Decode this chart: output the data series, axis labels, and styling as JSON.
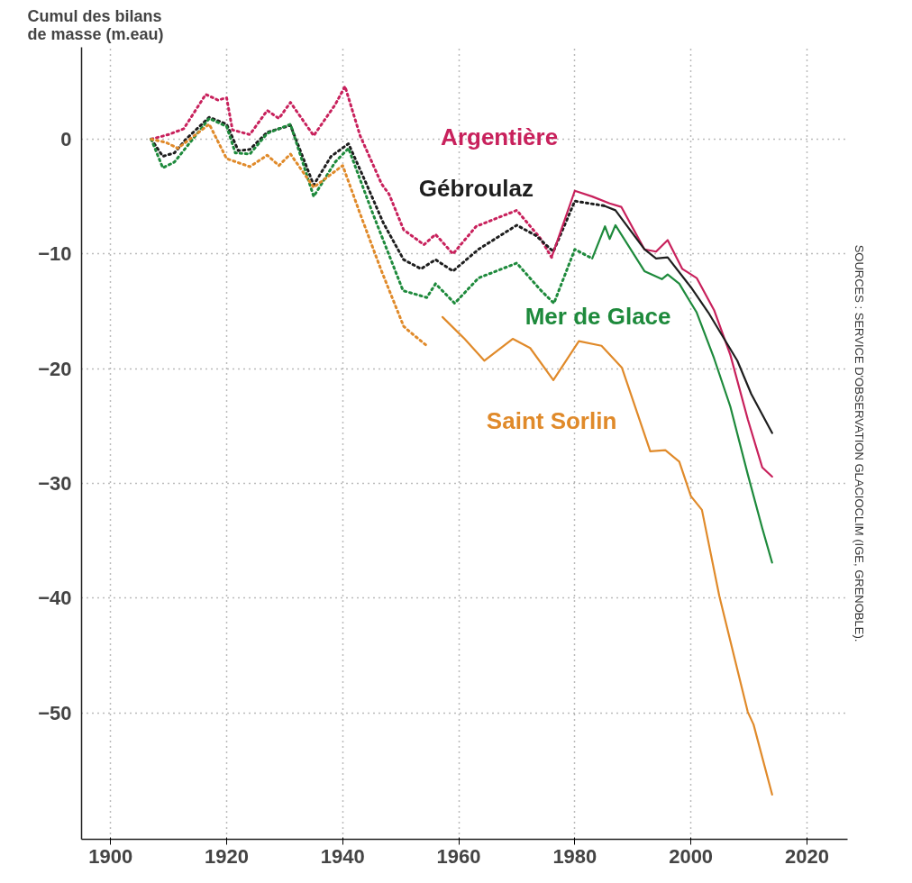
{
  "chart_data": {
    "type": "line",
    "ylabel": "Cumul des bilans\nde masse (m.eau)",
    "annotations": [
      "SOURCES : SERVICE D'OBSERVATION GLACIOCLIM (IGE, GRENOBLE)."
    ],
    "xlim": [
      1895,
      2027
    ],
    "ylim": [
      -61,
      8
    ],
    "xticks": [
      1900,
      1920,
      1940,
      1960,
      1980,
      2000,
      2020
    ],
    "yticks": [
      0,
      -10,
      -20,
      -30,
      -40,
      -50
    ],
    "grid": true,
    "marker": "none",
    "series": [
      {
        "name": "Argentière",
        "color": "#c8215c",
        "line_style": "dotted",
        "x": [
          1907,
          1910,
          1912.6,
          1916.4,
          1918.5,
          1920,
          1921,
          1924,
          1927,
          1929,
          1931,
          1935,
          1938.7,
          1940.4,
          1943,
          1946.7,
          1948,
          1950.5,
          1954,
          1956,
          1959,
          1963,
          1970,
          1974,
          1976
        ],
        "values": [
          0,
          0.4,
          0.9,
          3.9,
          3.4,
          3.6,
          0.8,
          0.4,
          2.5,
          1.8,
          3.2,
          0.3,
          3.0,
          4.6,
          0.3,
          -3.9,
          -4.8,
          -7.9,
          -9.2,
          -8.3,
          -10,
          -7.6,
          -6.2,
          -8.6,
          -10.3
        ]
      },
      {
        "name": "Gébroulaz",
        "color": "#1e1e1e",
        "line_style": "dotted",
        "x": [
          1907,
          1909,
          1911,
          1913,
          1917,
          1920,
          1922,
          1924,
          1927,
          1931,
          1935,
          1938,
          1941,
          1944,
          1947,
          1950.5,
          1953.5,
          1956,
          1959,
          1963.4,
          1970,
          1973.3,
          1976.3,
          1980,
          1985
        ],
        "values": [
          0,
          -1.5,
          -1.2,
          0,
          1.9,
          1.3,
          -1.0,
          -0.9,
          0.6,
          1.2,
          -4.0,
          -1.5,
          -0.4,
          -3.8,
          -7.3,
          -10.5,
          -11.3,
          -10.5,
          -11.5,
          -9.6,
          -7.5,
          -8.4,
          -9.8,
          -5.4,
          -5.8
        ]
      },
      {
        "name": "Mer de Glace",
        "color": "#1e8a3c",
        "line_style": "dotted",
        "x": [
          1907,
          1909,
          1911,
          1917,
          1920,
          1921.5,
          1924,
          1927,
          1931,
          1935,
          1938.7,
          1941,
          1945.2,
          1950.4,
          1954.5,
          1956,
          1959.3,
          1963.4,
          1970,
          1974.2,
          1976.4,
          1980,
          1983
        ],
        "values": [
          0,
          -2.5,
          -2.0,
          1.8,
          1.1,
          -1.2,
          -1.3,
          0.5,
          1.3,
          -5.0,
          -2.0,
          -0.8,
          -6.5,
          -13.2,
          -13.8,
          -12.6,
          -14.3,
          -12.1,
          -10.8,
          -13.2,
          -14.3,
          -9.6,
          -10.4
        ]
      },
      {
        "name": "Saint Sorlin",
        "color": "#e08a2a",
        "line_style": "dotted",
        "x": [
          1907,
          1909.6,
          1911.6,
          1917,
          1920,
          1924,
          1927,
          1929,
          1931,
          1935,
          1940,
          1943,
          1946.7,
          1950.5,
          1951.6,
          1954.5
        ],
        "values": [
          0,
          -0.3,
          -0.8,
          1.3,
          -1.7,
          -2.4,
          -1.4,
          -2.3,
          -1.3,
          -4.2,
          -2.3,
          -6.5,
          -11.5,
          -16.3,
          -16.8,
          -18.0
        ]
      },
      {
        "color": "#c8215c",
        "line_style": "solid",
        "x": [
          1976,
          1980,
          1983,
          1986,
          1988,
          1992,
          1994,
          1996,
          1998.5,
          2001,
          2004,
          2006.8,
          2009.8,
          2012.3,
          2014
        ],
        "values": [
          -10.3,
          -4.5,
          -5.0,
          -5.6,
          -5.9,
          -9.6,
          -9.8,
          -8.8,
          -11.3,
          -12.1,
          -14.9,
          -18.8,
          -24.4,
          -28.6,
          -29.4
        ]
      },
      {
        "color": "#1e1e1e",
        "line_style": "solid",
        "x": [
          1985,
          1987,
          1992,
          1994,
          1996,
          2000,
          2003,
          2008,
          2010.4,
          2014
        ],
        "values": [
          -5.8,
          -6.2,
          -9.6,
          -10.4,
          -10.3,
          -12.9,
          -15.1,
          -19.3,
          -22.2,
          -25.6
        ]
      },
      {
        "color": "#1e8a3c",
        "line_style": "solid",
        "x": [
          1983,
          1985.2,
          1986,
          1987,
          1992,
          1995,
          1996,
          1998,
          2001,
          2004,
          2006.8,
          2009.8,
          2012.3,
          2014
        ],
        "values": [
          -10.4,
          -7.6,
          -8.7,
          -7.5,
          -11.5,
          -12.2,
          -11.8,
          -12.6,
          -15.1,
          -19.1,
          -23.3,
          -29.2,
          -33.9,
          -36.9
        ]
      },
      {
        "color": "#e08a2a",
        "line_style": "solid",
        "x": [
          1957.2,
          1961,
          1964.4,
          1969.3,
          1972.3,
          1976.3,
          1980.7,
          1984.6,
          1988.1,
          1993,
          1995.6,
          1998,
          2000,
          2001.9,
          2004.9,
          2009.8,
          2010.8,
          2014
        ],
        "values": [
          -15.5,
          -17.4,
          -19.3,
          -17.4,
          -18.2,
          -21.0,
          -17.6,
          -18.0,
          -19.9,
          -27.2,
          -27.1,
          -28.1,
          -31.1,
          -32.3,
          -39.8,
          -49.9,
          -51.0,
          -57.1
        ]
      }
    ]
  }
}
